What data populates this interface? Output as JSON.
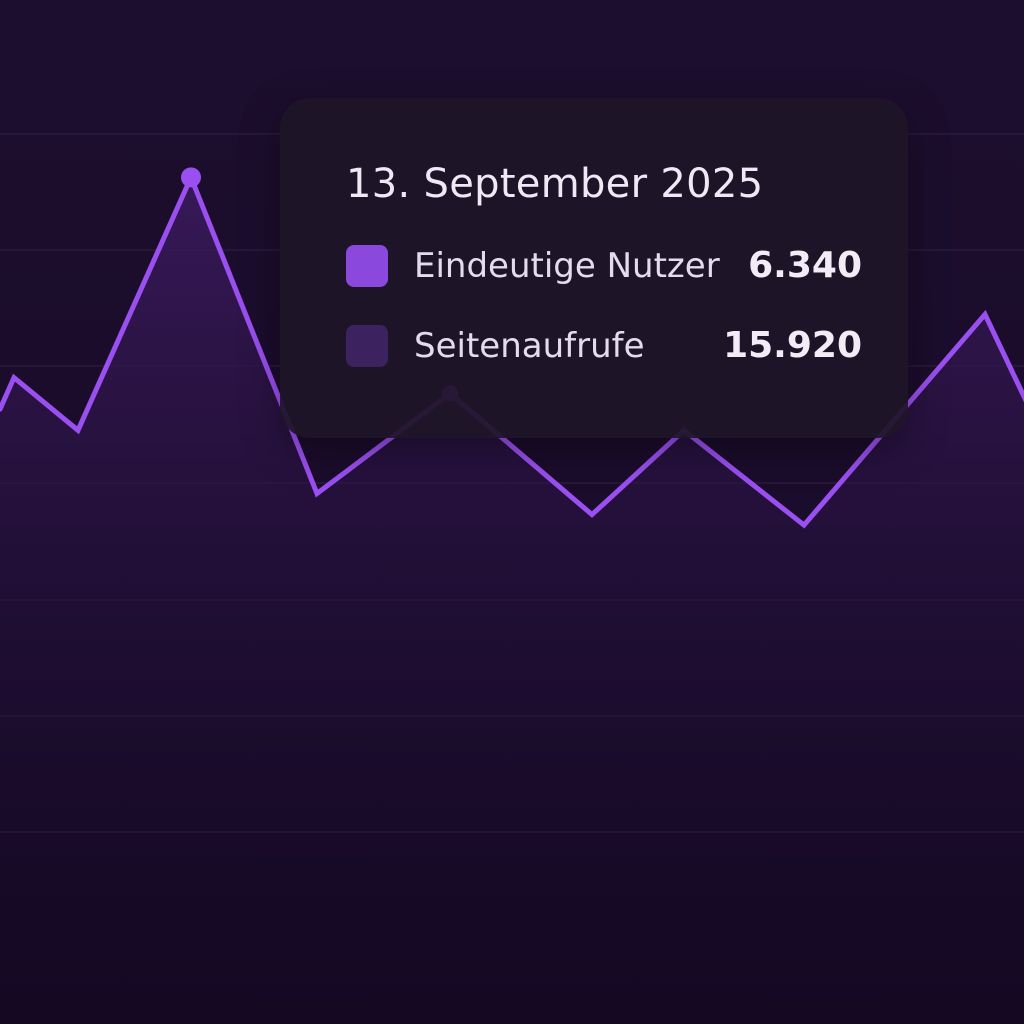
{
  "colors": {
    "line": "#9a4ff0",
    "area_top": "#3a1a5c",
    "area_bottom": "#170a26",
    "gridline": "#2b1a3d",
    "swatch_unique_users": "#8a48dc",
    "swatch_page_views": "#3d2260"
  },
  "chart_data": {
    "type": "area",
    "grid": true,
    "series": [
      {
        "name": "Eindeutige Nutzer",
        "values": [
          6800,
          7100,
          6600,
          9000,
          6000,
          6950,
          5800,
          6600,
          5700,
          7700,
          6800
        ]
      }
    ],
    "markers": [
      1,
      5
    ],
    "tooltip": {
      "date": "13. September 2025",
      "items": [
        {
          "label": "Eindeutige Nutzer",
          "value": "6.340",
          "swatch": "unique_users"
        },
        {
          "label": "Seitenaufrufe",
          "value": "15.920",
          "swatch": "page_views"
        }
      ]
    }
  }
}
